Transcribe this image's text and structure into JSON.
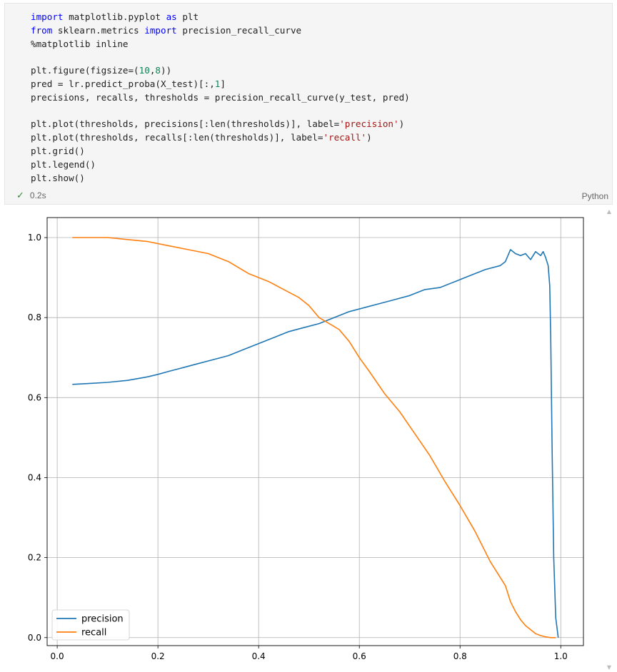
{
  "cell": {
    "code_lines": [
      [
        {
          "t": "import",
          "c": "kw"
        },
        {
          "t": " matplotlib.pyplot "
        },
        {
          "t": "as",
          "c": "kw"
        },
        {
          "t": " plt"
        }
      ],
      [
        {
          "t": "from",
          "c": "kw"
        },
        {
          "t": " sklearn.metrics "
        },
        {
          "t": "import",
          "c": "kw"
        },
        {
          "t": " precision_recall_curve"
        }
      ],
      [
        {
          "t": "%matplotlib inline"
        }
      ],
      [],
      [
        {
          "t": "plt.figure(figsize=(",
          "c": ""
        },
        {
          "t": "10",
          "c": "num"
        },
        {
          "t": ","
        },
        {
          "t": "8",
          "c": "num"
        },
        {
          "t": "))"
        }
      ],
      [
        {
          "t": "pred = lr.predict_proba(X_test)[:,"
        },
        {
          "t": "1",
          "c": "num"
        },
        {
          "t": "]"
        }
      ],
      [
        {
          "t": "precisions, recalls, thresholds = precision_recall_curve(y_test, pred)"
        }
      ],
      [],
      [
        {
          "t": "plt.plot(thresholds, precisions[:len(thresholds)], label="
        },
        {
          "t": "'precision'",
          "c": "str"
        },
        {
          "t": ")"
        }
      ],
      [
        {
          "t": "plt.plot(thresholds, recalls[:len(thresholds)], label="
        },
        {
          "t": "'recall'",
          "c": "str"
        },
        {
          "t": ")"
        }
      ],
      [
        {
          "t": "plt.grid()"
        }
      ],
      [
        {
          "t": "plt.legend()"
        }
      ],
      [
        {
          "t": "plt.show()"
        }
      ]
    ],
    "status_check": "✓",
    "exec_time": "0.2s",
    "language": "Python"
  },
  "chart_data": {
    "type": "line",
    "xlim": [
      -0.02,
      1.045
    ],
    "ylim": [
      -0.02,
      1.05
    ],
    "xticks": [
      0.0,
      0.2,
      0.4,
      0.6,
      0.8,
      1.0
    ],
    "yticks": [
      0.0,
      0.2,
      0.4,
      0.6,
      0.8,
      1.0
    ],
    "xtick_labels": [
      "0.0",
      "0.2",
      "0.4",
      "0.6",
      "0.8",
      "1.0"
    ],
    "ytick_labels": [
      "0.0",
      "0.2",
      "0.4",
      "0.6",
      "0.8",
      "1.0"
    ],
    "grid": true,
    "legend": "lower-left",
    "series": [
      {
        "name": "precision",
        "color": "#1f77b4",
        "x": [
          0.03,
          0.06,
          0.1,
          0.14,
          0.18,
          0.2,
          0.22,
          0.25,
          0.28,
          0.31,
          0.34,
          0.37,
          0.4,
          0.43,
          0.46,
          0.49,
          0.52,
          0.54,
          0.56,
          0.58,
          0.61,
          0.64,
          0.67,
          0.7,
          0.73,
          0.76,
          0.79,
          0.82,
          0.85,
          0.88,
          0.89,
          0.9,
          0.91,
          0.92,
          0.93,
          0.94,
          0.95,
          0.955,
          0.96,
          0.965,
          0.97,
          0.975,
          0.978,
          0.98,
          0.983,
          0.986,
          0.99,
          0.995
        ],
        "y": [
          0.633,
          0.635,
          0.638,
          0.643,
          0.652,
          0.658,
          0.665,
          0.675,
          0.685,
          0.695,
          0.705,
          0.72,
          0.735,
          0.75,
          0.765,
          0.775,
          0.785,
          0.795,
          0.805,
          0.815,
          0.825,
          0.835,
          0.845,
          0.855,
          0.87,
          0.875,
          0.89,
          0.905,
          0.92,
          0.93,
          0.94,
          0.97,
          0.96,
          0.955,
          0.96,
          0.945,
          0.965,
          0.96,
          0.955,
          0.965,
          0.95,
          0.93,
          0.88,
          0.75,
          0.45,
          0.2,
          0.05,
          0.0
        ]
      },
      {
        "name": "recall",
        "color": "#ff7f0e",
        "x": [
          0.03,
          0.06,
          0.1,
          0.14,
          0.18,
          0.22,
          0.26,
          0.3,
          0.34,
          0.38,
          0.42,
          0.45,
          0.48,
          0.5,
          0.52,
          0.54,
          0.56,
          0.58,
          0.6,
          0.62,
          0.65,
          0.68,
          0.71,
          0.74,
          0.77,
          0.8,
          0.83,
          0.86,
          0.89,
          0.9,
          0.91,
          0.92,
          0.93,
          0.94,
          0.95,
          0.96,
          0.97,
          0.98,
          0.99
        ],
        "y": [
          1.0,
          1.0,
          1.0,
          0.995,
          0.99,
          0.98,
          0.97,
          0.96,
          0.94,
          0.91,
          0.89,
          0.87,
          0.85,
          0.83,
          0.8,
          0.785,
          0.77,
          0.74,
          0.7,
          0.665,
          0.61,
          0.565,
          0.51,
          0.455,
          0.39,
          0.33,
          0.265,
          0.19,
          0.13,
          0.09,
          0.065,
          0.045,
          0.03,
          0.02,
          0.01,
          0.005,
          0.002,
          0.0,
          0.0
        ]
      }
    ]
  }
}
